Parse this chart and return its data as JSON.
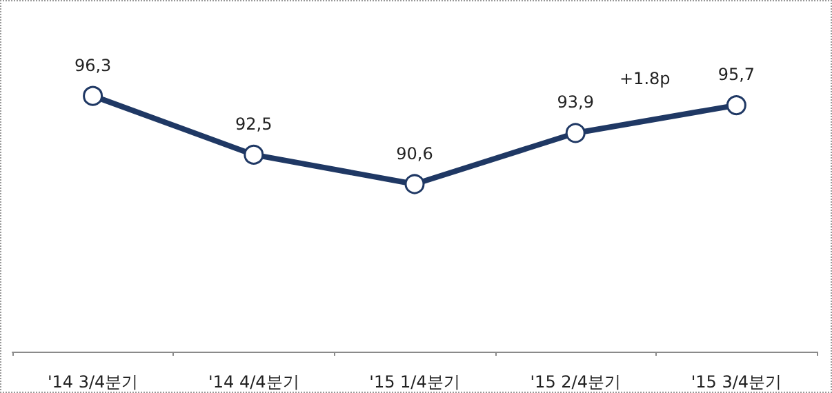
{
  "chart_data": {
    "type": "line",
    "categories": [
      "'14 3/4분기",
      "'14 4/4분기",
      "'15 1/4분기",
      "'15 2/4분기",
      "'15 3/4분기"
    ],
    "series": [
      {
        "color": "#1f3864",
        "values": [
          96.3,
          92.5,
          90.6,
          93.9,
          95.7
        ],
        "value_labels": [
          "96,3",
          "92,5",
          "90,6",
          "93,9",
          "95,7"
        ]
      }
    ],
    "tick_labels": "x",
    "grid": false,
    "marker": "circle",
    "line_style": "solid",
    "annotations": [
      "+1.8p"
    ]
  }
}
